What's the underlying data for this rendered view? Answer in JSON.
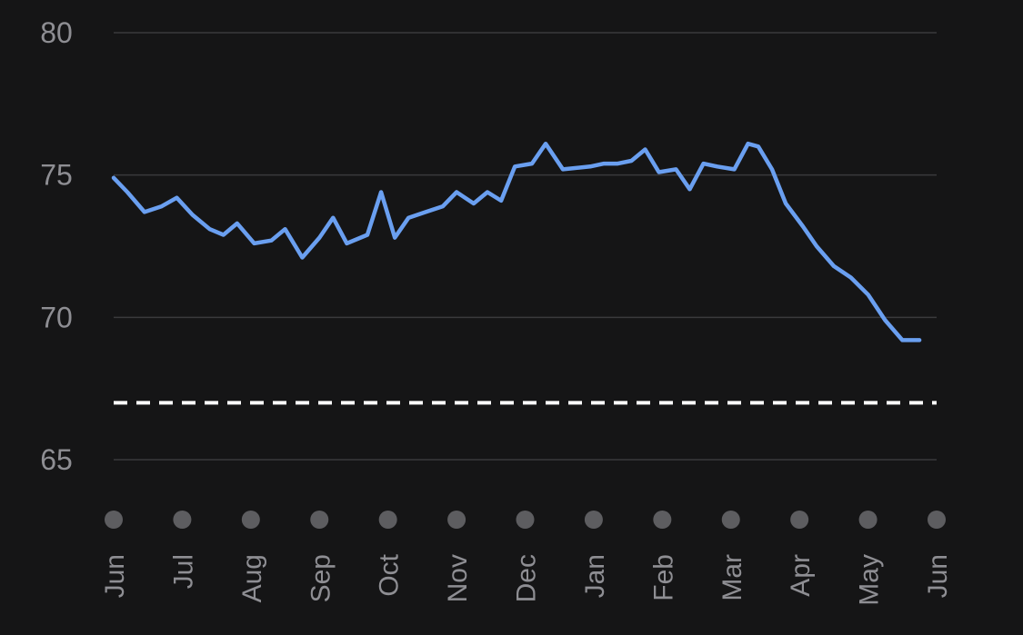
{
  "chart_data": {
    "type": "line",
    "title": "",
    "xlabel": "",
    "ylabel": "",
    "ylim": [
      65,
      80
    ],
    "y_ticks": [
      80,
      75,
      70,
      65
    ],
    "grid": true,
    "x_ticks": [
      "Jun",
      "Jul",
      "Aug",
      "Sep",
      "Oct",
      "Nov",
      "Dec",
      "Jan",
      "Feb",
      "Mar",
      "Apr",
      "May",
      "Jun"
    ],
    "x_range": [
      0,
      12
    ],
    "threshold": 67,
    "series": [
      {
        "name": "",
        "x": [
          0.0,
          0.2,
          0.45,
          0.7,
          0.92,
          1.15,
          1.4,
          1.6,
          1.8,
          2.05,
          2.3,
          2.5,
          2.75,
          3.0,
          3.2,
          3.4,
          3.7,
          3.9,
          4.1,
          4.3,
          4.55,
          4.8,
          5.0,
          5.25,
          5.45,
          5.65,
          5.85,
          6.1,
          6.3,
          6.55,
          6.95,
          7.15,
          7.35,
          7.55,
          7.75,
          7.95,
          8.2,
          8.4,
          8.6,
          8.8,
          9.05,
          9.25,
          9.4,
          9.6,
          9.8,
          10.05,
          10.25,
          10.5,
          10.75,
          11.0,
          11.25,
          11.5,
          11.75
        ],
        "values": [
          74.9,
          74.4,
          73.7,
          73.9,
          74.2,
          73.6,
          73.1,
          72.9,
          73.3,
          72.6,
          72.7,
          73.1,
          72.1,
          72.8,
          73.5,
          72.6,
          72.9,
          74.4,
          72.8,
          73.5,
          73.7,
          73.9,
          74.4,
          74.0,
          74.4,
          74.1,
          75.3,
          75.4,
          76.1,
          75.2,
          75.3,
          75.4,
          75.4,
          75.5,
          75.9,
          75.1,
          75.2,
          74.5,
          75.4,
          75.3,
          75.2,
          76.1,
          76.0,
          75.2,
          74.0,
          73.2,
          72.5,
          71.8,
          71.4,
          70.8,
          69.9,
          69.2,
          69.2
        ],
        "color": "#6a9ff0"
      }
    ],
    "colors": {
      "background": "#151516",
      "grid": "#3a3a3c",
      "tick_text": "#8e8e93",
      "marker": "#5d5d60",
      "threshold": "#ffffff"
    }
  }
}
